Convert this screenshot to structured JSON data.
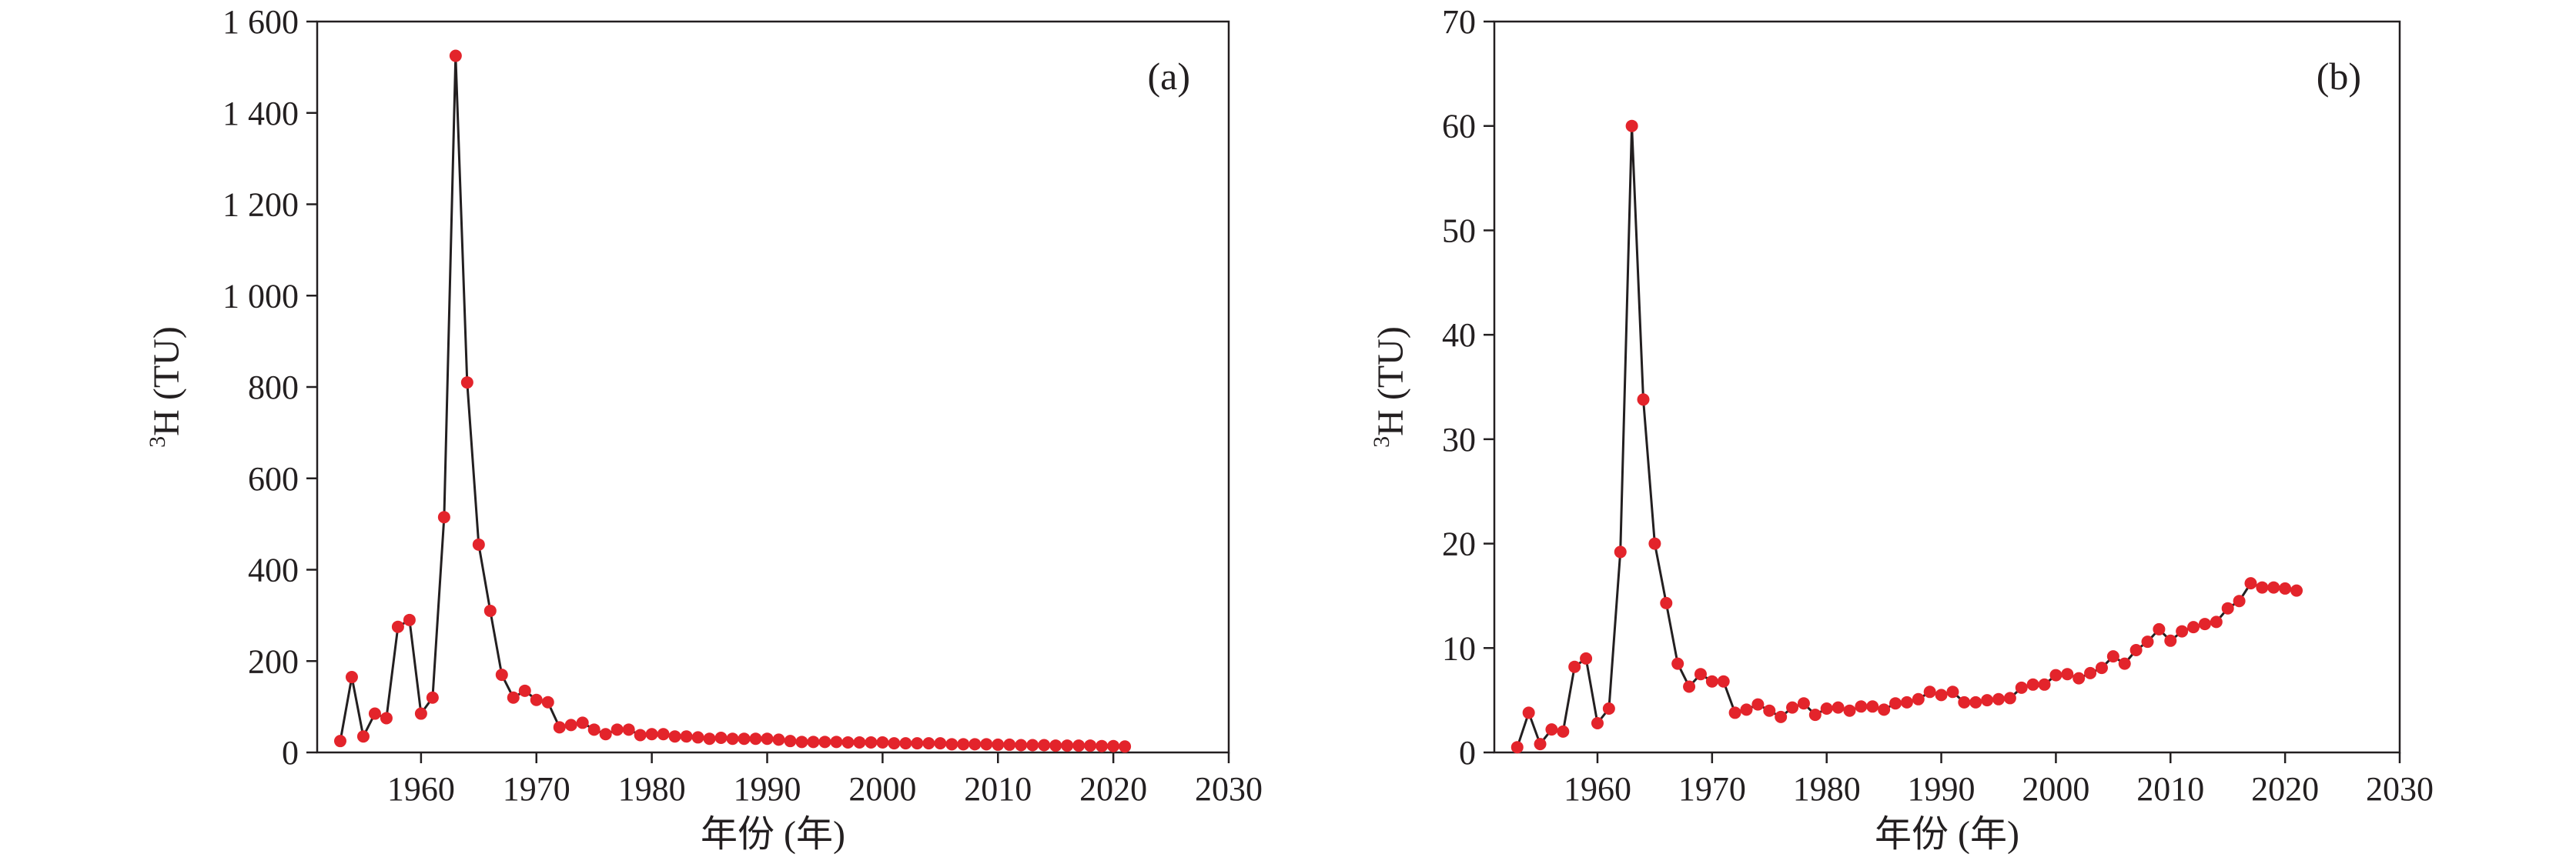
{
  "chart_data": [
    {
      "type": "line",
      "panel_label": "(a)",
      "xlabel": "年份 (年)",
      "ylabel": {
        "sup": "3",
        "main": "H (TU)"
      },
      "xlim": [
        1951,
        2030
      ],
      "ylim": [
        0,
        1600
      ],
      "xticks": [
        1960,
        1970,
        1980,
        1990,
        2000,
        2010,
        2020,
        2030
      ],
      "yticks": [
        0,
        200,
        400,
        600,
        800,
        1000,
        1200,
        1400,
        1600
      ],
      "ytick_labels": [
        "0",
        "200",
        "400",
        "600",
        "800",
        "1 000",
        "1 200",
        "1 400",
        "1 600"
      ],
      "grid": false,
      "marker_color": "#e3242b",
      "line_color": "#231f20",
      "x": [
        1953,
        1954,
        1955,
        1956,
        1957,
        1958,
        1959,
        1960,
        1961,
        1962,
        1963,
        1964,
        1965,
        1966,
        1967,
        1968,
        1969,
        1970,
        1971,
        1972,
        1973,
        1974,
        1975,
        1976,
        1977,
        1978,
        1979,
        1980,
        1981,
        1982,
        1983,
        1984,
        1985,
        1986,
        1987,
        1988,
        1989,
        1990,
        1991,
        1992,
        1993,
        1994,
        1995,
        1996,
        1997,
        1998,
        1999,
        2000,
        2001,
        2002,
        2003,
        2004,
        2005,
        2006,
        2007,
        2008,
        2009,
        2010,
        2011,
        2012,
        2013,
        2014,
        2015,
        2016,
        2017,
        2018,
        2019,
        2020,
        2021
      ],
      "y": [
        25,
        165,
        35,
        85,
        75,
        275,
        290,
        85,
        120,
        515,
        1525,
        810,
        455,
        310,
        170,
        120,
        135,
        115,
        110,
        55,
        60,
        65,
        50,
        40,
        50,
        50,
        38,
        40,
        40,
        35,
        35,
        33,
        30,
        32,
        30,
        30,
        30,
        30,
        28,
        25,
        23,
        23,
        23,
        23,
        22,
        22,
        22,
        22,
        20,
        20,
        20,
        20,
        20,
        18,
        18,
        18,
        18,
        17,
        17,
        16,
        16,
        16,
        15,
        15,
        15,
        15,
        14,
        14,
        13
      ]
    },
    {
      "type": "line",
      "panel_label": "(b)",
      "xlabel": "年份 (年)",
      "ylabel": {
        "sup": "3",
        "main": "H (TU)"
      },
      "xlim": [
        1951,
        2030
      ],
      "ylim": [
        0,
        70
      ],
      "xticks": [
        1960,
        1970,
        1980,
        1990,
        2000,
        2010,
        2020,
        2030
      ],
      "yticks": [
        0,
        10,
        20,
        30,
        40,
        50,
        60,
        70
      ],
      "ytick_labels": [
        "0",
        "10",
        "20",
        "30",
        "40",
        "50",
        "60",
        "70"
      ],
      "grid": false,
      "marker_color": "#e3242b",
      "line_color": "#231f20",
      "x": [
        1953,
        1954,
        1955,
        1956,
        1957,
        1958,
        1959,
        1960,
        1961,
        1962,
        1963,
        1964,
        1965,
        1966,
        1967,
        1968,
        1969,
        1970,
        1971,
        1972,
        1973,
        1974,
        1975,
        1976,
        1977,
        1978,
        1979,
        1980,
        1981,
        1982,
        1983,
        1984,
        1985,
        1986,
        1987,
        1988,
        1989,
        1990,
        1991,
        1992,
        1993,
        1994,
        1995,
        1996,
        1997,
        1998,
        1999,
        2000,
        2001,
        2002,
        2003,
        2004,
        2005,
        2006,
        2007,
        2008,
        2009,
        2010,
        2011,
        2012,
        2013,
        2014,
        2015,
        2016,
        2017,
        2018,
        2019,
        2020,
        2021
      ],
      "y": [
        0.5,
        3.8,
        0.8,
        2.2,
        2.0,
        8.2,
        9.0,
        2.8,
        4.2,
        19.2,
        60.0,
        33.8,
        20.0,
        14.3,
        8.5,
        6.3,
        7.5,
        6.8,
        6.8,
        3.8,
        4.1,
        4.6,
        4.0,
        3.4,
        4.3,
        4.7,
        3.6,
        4.2,
        4.3,
        4.0,
        4.4,
        4.4,
        4.1,
        4.7,
        4.8,
        5.1,
        5.8,
        5.5,
        5.8,
        4.8,
        4.8,
        5.0,
        5.1,
        5.2,
        6.2,
        6.5,
        6.5,
        7.4,
        7.5,
        7.1,
        7.6,
        8.1,
        9.2,
        8.5,
        9.8,
        10.6,
        11.8,
        10.7,
        11.6,
        12.0,
        12.3,
        12.5,
        13.8,
        14.5,
        16.2,
        15.8,
        15.8,
        15.7,
        15.5
      ]
    }
  ]
}
